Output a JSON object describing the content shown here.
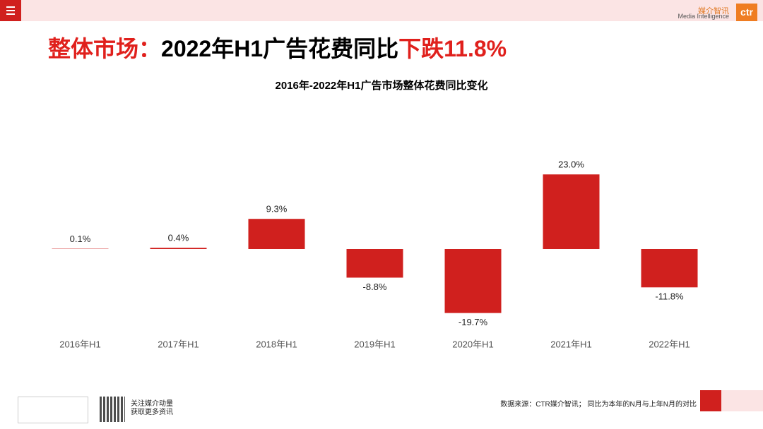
{
  "header": {
    "logo_cn": "媒介智讯",
    "logo_en": "Media Intelligence",
    "logo_mark": "ctr"
  },
  "headline": [
    "整体市场：",
    "2022年H1广告花费同比",
    "下跌11.8%"
  ],
  "chart_data": {
    "type": "bar",
    "title": "2016年-2022年H1广告市场整体花费同比变化",
    "categories": [
      "2016年H1",
      "2017年H1",
      "2018年H1",
      "2019年H1",
      "2020年H1",
      "2021年H1",
      "2022年H1"
    ],
    "values": [
      0.1,
      0.4,
      9.3,
      -8.8,
      -19.7,
      23.0,
      -11.8
    ],
    "value_labels": [
      "0.1%",
      "0.4%",
      "9.3%",
      "-8.8%",
      "-19.7%",
      "23.0%",
      "-11.8%"
    ],
    "color": "#d0201e"
  },
  "footer": {
    "follow": [
      "关注媒介动量",
      "获取更多资讯"
    ],
    "source": "数据来源：CTR媒介智讯；  同比为本年的N月与上年N月的对比"
  }
}
